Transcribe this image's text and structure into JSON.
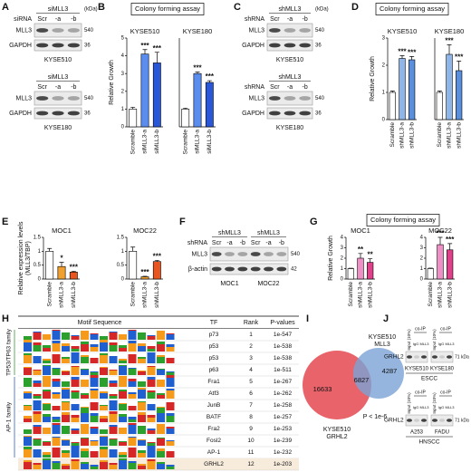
{
  "panel_letters": [
    "A",
    "B",
    "C",
    "D",
    "E",
    "F",
    "G",
    "H",
    "I",
    "J"
  ],
  "assay_headers": [
    "Colony forming assay",
    "Colony forming assay",
    "Colony forming assay"
  ],
  "chart_data": [
    {
      "type": "bar",
      "title": "KYSE510",
      "ylabel": "Relative Growth",
      "categories": [
        "Scramble",
        "siMLL3-a",
        "siMLL3-b"
      ],
      "values": [
        1.0,
        4.1,
        3.6
      ],
      "errors": [
        0.1,
        0.25,
        0.6
      ],
      "annotations": [
        null,
        "***",
        "***"
      ],
      "colors": [
        "#ffffff",
        "#5b8def",
        "#2a56d8"
      ],
      "ylim": [
        0,
        5
      ],
      "yticks": [
        0,
        1,
        2,
        3,
        4,
        5
      ]
    },
    {
      "type": "bar",
      "title": "KYSE180",
      "categories": [
        "Scramble",
        "siMLL3-a",
        "siMLL3-b"
      ],
      "values": [
        1.0,
        3.0,
        2.5
      ],
      "errors": [
        0.05,
        0.08,
        0.1
      ],
      "annotations": [
        null,
        "***",
        "***"
      ],
      "colors": [
        "#ffffff",
        "#5b8def",
        "#2a56d8"
      ],
      "ylim": [
        0,
        5
      ]
    },
    {
      "type": "bar",
      "title": "KYSE510",
      "ylabel": "Relative Growth",
      "categories": [
        "Scramble",
        "shMLL3-a",
        "shMLL3-b"
      ],
      "values": [
        1.0,
        2.25,
        2.2
      ],
      "errors": [
        0.05,
        0.1,
        0.12
      ],
      "annotations": [
        null,
        "***",
        "***"
      ],
      "colors": [
        "#ffffff",
        "#8fb6ea",
        "#5a8fdc"
      ],
      "ylim": [
        0,
        3
      ],
      "yticks": [
        0,
        1,
        2,
        3
      ]
    },
    {
      "type": "bar",
      "title": "KYSE180",
      "categories": [
        "Scramble",
        "shMLL3-a",
        "shMLL3-b"
      ],
      "values": [
        1.0,
        2.4,
        1.8
      ],
      "errors": [
        0.05,
        0.35,
        0.35
      ],
      "annotations": [
        null,
        "***",
        "***"
      ],
      "colors": [
        "#ffffff",
        "#8fb6ea",
        "#5a8fdc"
      ],
      "ylim": [
        0,
        3
      ]
    },
    {
      "type": "bar",
      "title": "MOC1",
      "ylabel": [
        "Relative expression levels",
        "(MLL3/TBP)"
      ],
      "categories": [
        "Scramble",
        "shMLL3-a",
        "shMLL3-b"
      ],
      "values": [
        1.0,
        0.45,
        0.25
      ],
      "errors": [
        0.1,
        0.15,
        0.03
      ],
      "annotations": [
        null,
        "*",
        "***"
      ],
      "colors": [
        "#ffffff",
        "#f0a030",
        "#e8551e"
      ],
      "ylim": [
        0,
        1.5
      ],
      "yticks": [
        0,
        0.5,
        1,
        1.5
      ]
    },
    {
      "type": "bar",
      "title": "MOC22",
      "categories": [
        "Scramble",
        "shMLL3-a",
        "shMLL3-b"
      ],
      "values": [
        1.0,
        0.08,
        0.63
      ],
      "errors": [
        0.15,
        0.02,
        0.04
      ],
      "annotations": [
        null,
        "***",
        "***"
      ],
      "colors": [
        "#ffffff",
        "#f0a030",
        "#e8551e"
      ],
      "ylim": [
        0,
        1.5
      ],
      "yticks": [
        0,
        0.5,
        1,
        1.5
      ]
    },
    {
      "type": "bar",
      "title": "MOC1",
      "ylabel": "Relative Growth",
      "categories": [
        "Scramble",
        "shMLL3-a",
        "shMLL3-b"
      ],
      "values": [
        1.0,
        2.0,
        1.6
      ],
      "errors": [
        0.03,
        0.45,
        0.35
      ],
      "annotations": [
        null,
        "**",
        "**"
      ],
      "colors": [
        "#ffffff",
        "#ef8fc6",
        "#e0408a"
      ],
      "ylim": [
        0,
        4
      ],
      "yticks": [
        0,
        1,
        2,
        3,
        4
      ]
    },
    {
      "type": "bar",
      "title": "MOC22",
      "categories": [
        "Scramble",
        "shMLL3-a",
        "shMLL3-b"
      ],
      "values": [
        1.0,
        3.3,
        2.8
      ],
      "errors": [
        0.05,
        0.7,
        0.6
      ],
      "annotations": [
        null,
        "***",
        "***"
      ],
      "colors": [
        "#ffffff",
        "#ef8fc6",
        "#e0408a"
      ],
      "ylim": [
        0,
        4
      ],
      "yticks": [
        0,
        1,
        2,
        3,
        4
      ]
    }
  ],
  "blots": [
    {
      "treatment": "siRNA",
      "groups": [
        "siMLL3"
      ],
      "lanes": [
        "Scr",
        "-a",
        "-b"
      ],
      "proteins": [
        "MLL3",
        "GAPDH"
      ],
      "kda": [
        540,
        36
      ],
      "kda_unit": "(kDa)",
      "cell_lines": [
        "KYSE510"
      ]
    },
    {
      "groups": [
        "siMLL3"
      ],
      "lanes": [
        "Scr",
        "-a",
        "-b"
      ],
      "proteins": [
        "MLL3",
        "GAPDH"
      ],
      "kda": [
        540,
        36
      ],
      "cell_lines": [
        "KYSE180"
      ]
    },
    {
      "treatment": "shRNA",
      "groups": [
        "shMLL3"
      ],
      "lanes": [
        "Scr",
        "-a",
        "-b"
      ],
      "proteins": [
        "MLL3",
        "GAPDH"
      ],
      "kda": [
        540,
        36
      ],
      "kda_unit": "(kDa)",
      "cell_lines": [
        "KYSE510"
      ]
    },
    {
      "treatment": "shRNA",
      "groups": [
        "shMLL3"
      ],
      "lanes": [
        "Scr",
        "-a",
        "-b"
      ],
      "proteins": [
        "MLL3",
        "GAPDH"
      ],
      "kda": [
        540,
        36
      ],
      "cell_lines": [
        "KYSE180"
      ]
    },
    {
      "treatment": "shRNA",
      "groups": [
        "shMLL3",
        "shMLL3"
      ],
      "lanes": [
        "Scr",
        "-a",
        "-b",
        "Scr",
        "-a",
        "-b"
      ],
      "proteins": [
        "MLL3",
        "β-actin"
      ],
      "kda": [
        540,
        42
      ],
      "cell_lines": [
        "MOC1",
        "MOC22"
      ]
    }
  ],
  "motif_table": {
    "header": [
      "Motif Sequence",
      "TF",
      "Rank",
      "P-values"
    ],
    "families": [
      "TP53/TP63 family",
      "AP-1 family"
    ],
    "rows": [
      [
        "p73",
        1,
        "1e-547"
      ],
      [
        "p53",
        2,
        "1e-538"
      ],
      [
        "p53",
        3,
        "1e-538"
      ],
      [
        "p63",
        4,
        "1e-511"
      ],
      [
        "Fra1",
        5,
        "1e-267"
      ],
      [
        "Atf3",
        6,
        "1e-262"
      ],
      [
        "JunB",
        7,
        "1e-258"
      ],
      [
        "BATF",
        8,
        "1e-257"
      ],
      [
        "Fra2",
        9,
        "1e-253"
      ],
      [
        "Fosl2",
        10,
        "1e-239"
      ],
      [
        "AP-1",
        11,
        "1e-232"
      ],
      [
        "GRHL2",
        12,
        "1e-203"
      ]
    ]
  },
  "venn": {
    "counts": [
      16633,
      6827,
      4287
    ],
    "left_label": [
      "KYSE510",
      "GRHL2"
    ],
    "right_label": [
      "KYSE510",
      "MLL3"
    ],
    "p_value": "P < 1e-6"
  },
  "coip": {
    "protein": "GRHL2",
    "input_label": "Input (10%)",
    "coip_label": "co-IP",
    "lanes": [
      "IgG",
      "MLL3"
    ],
    "size": "71 kDa",
    "rows": [
      {
        "cell_lines": [
          "KYSE510",
          "KYSE180"
        ],
        "group": "ESCC"
      },
      {
        "cell_lines": [
          "A253",
          "FADU"
        ],
        "group": "HNSCC"
      }
    ]
  }
}
